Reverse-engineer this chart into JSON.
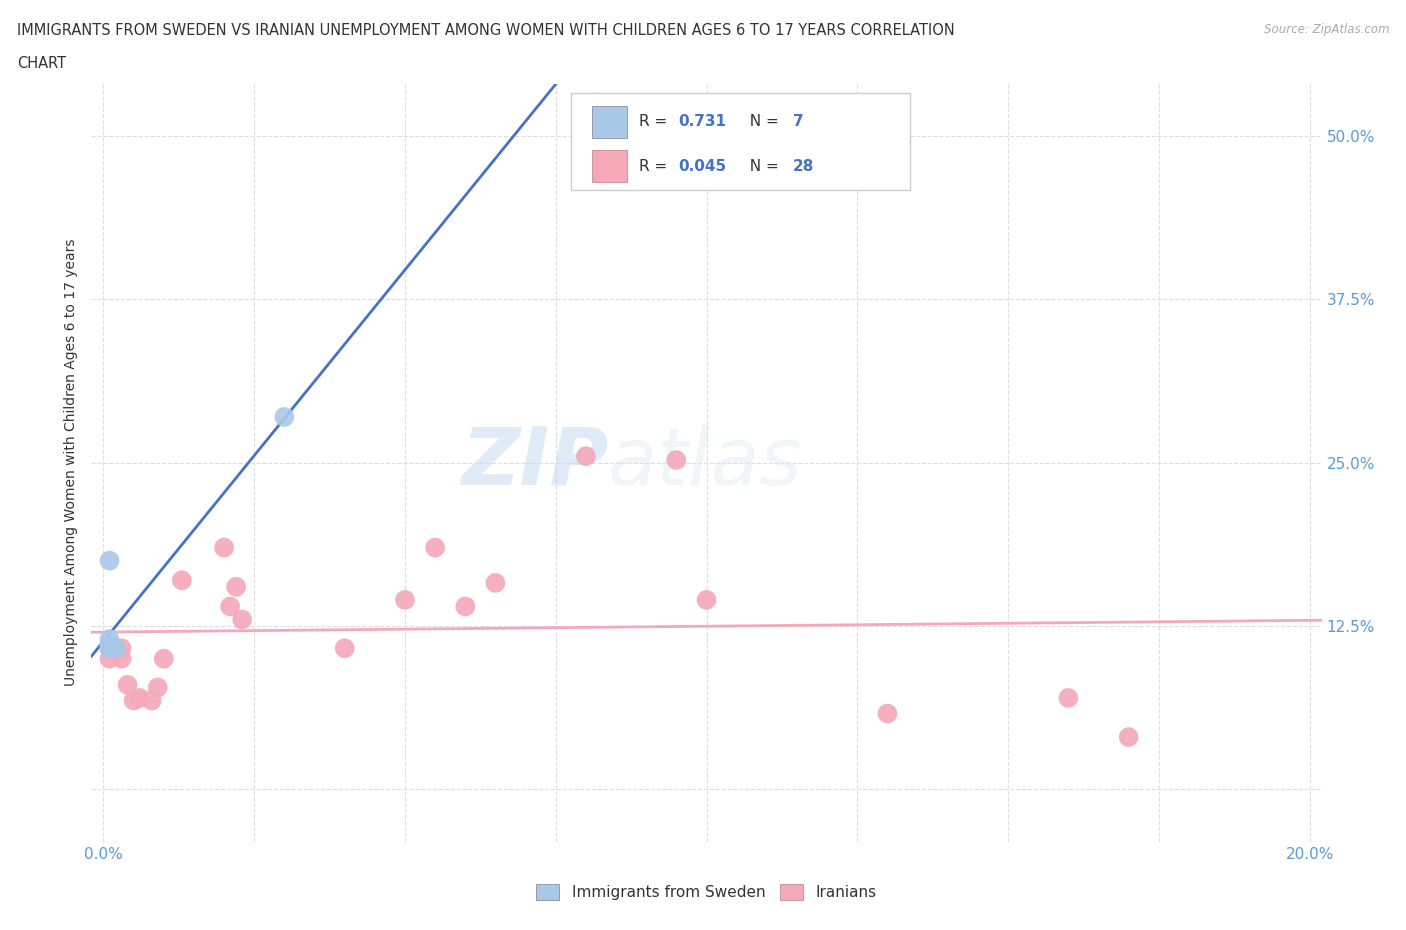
{
  "title_line1": "IMMIGRANTS FROM SWEDEN VS IRANIAN UNEMPLOYMENT AMONG WOMEN WITH CHILDREN AGES 6 TO 17 YEARS CORRELATION",
  "title_line2": "CHART",
  "source": "Source: ZipAtlas.com",
  "ylabel_label": "Unemployment Among Women with Children Ages 6 to 17 years",
  "watermark": "ZIPatlas",
  "sweden_color": "#a8c8e8",
  "iran_color": "#f4a8b8",
  "sweden_line_color": "#4472c4",
  "iran_line_color": "#f4a8b8",
  "sweden_R": 0.731,
  "sweden_N": 7,
  "iran_R": 0.045,
  "iran_N": 28,
  "sweden_points_x": [
    0.001,
    0.001,
    0.001,
    0.001,
    0.002,
    0.002,
    0.03
  ],
  "sweden_points_y": [
    0.115,
    0.11,
    0.108,
    0.175,
    0.108,
    0.108,
    0.285
  ],
  "iran_points_x": [
    0.001,
    0.001,
    0.002,
    0.002,
    0.003,
    0.003,
    0.004,
    0.005,
    0.006,
    0.008,
    0.009,
    0.01,
    0.013,
    0.02,
    0.021,
    0.022,
    0.023,
    0.04,
    0.05,
    0.055,
    0.06,
    0.065,
    0.08,
    0.095,
    0.1,
    0.13,
    0.16,
    0.17
  ],
  "iran_points_y": [
    0.108,
    0.1,
    0.108,
    0.108,
    0.1,
    0.108,
    0.08,
    0.068,
    0.07,
    0.068,
    0.078,
    0.1,
    0.16,
    0.185,
    0.14,
    0.155,
    0.13,
    0.108,
    0.145,
    0.185,
    0.14,
    0.158,
    0.255,
    0.252,
    0.145,
    0.058,
    0.07,
    0.04
  ],
  "xmin": -0.002,
  "xmax": 0.202,
  "ymin": -0.04,
  "ymax": 0.54,
  "ytick_vals": [
    0.0,
    0.125,
    0.25,
    0.375,
    0.5
  ],
  "ytick_labels": [
    "",
    "12.5%",
    "25.0%",
    "37.5%",
    "50.0%"
  ],
  "xtick_vals": [
    0.0,
    0.025,
    0.05,
    0.075,
    0.1,
    0.125,
    0.15,
    0.175,
    0.2
  ],
  "xtick_labels": [
    "0.0%",
    "",
    "",
    "",
    "",
    "",
    "",
    "",
    "20.0%"
  ],
  "grid_color": "#dddddd",
  "background_color": "#ffffff",
  "title_color": "#333333",
  "tick_color": "#5b9bd5",
  "source_color": "#aaaaaa"
}
